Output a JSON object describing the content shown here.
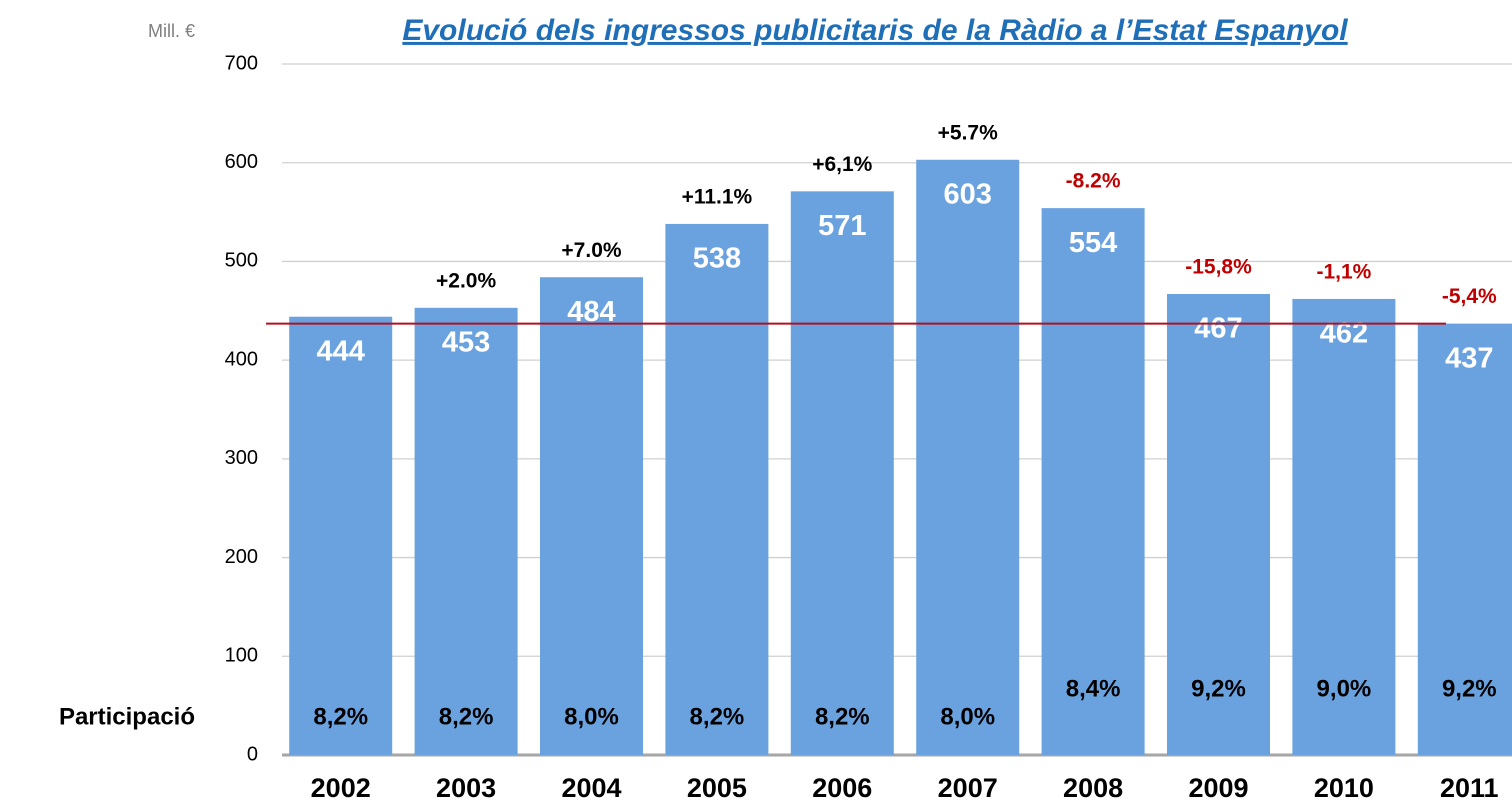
{
  "chart_data": {
    "type": "bar",
    "title": "Evolució dels ingressos publicitaris de la Ràdio a l’Estat Espanyol",
    "y_unit_label": "Mill. €",
    "share_row_label": "Participació",
    "categories": [
      "2002",
      "2003",
      "2004",
      "2005",
      "2006",
      "2007",
      "2008",
      "2009",
      "2010",
      "2011"
    ],
    "values": [
      444,
      453,
      484,
      538,
      571,
      603,
      554,
      467,
      462,
      437
    ],
    "color": "#6aa2e0",
    "growth_labels": [
      null,
      "+2.0%",
      "+7.0%",
      "+11.1%",
      "+6,1%",
      "+5.7%",
      "-8.2%",
      "-15,8%",
      "-1,1%",
      "-5,4%"
    ],
    "growth_colors": [
      null,
      "#000000",
      "#000000",
      "#000000",
      "#000000",
      "#000000",
      "#c00000",
      "#c00000",
      "#c00000",
      "#c00000"
    ],
    "share_labels": [
      "8,2%",
      "8,2%",
      "8,0%",
      "8,2%",
      "8,2%",
      "8,0%",
      "8,4%",
      "9,2%",
      "9,0%",
      "9,2%"
    ],
    "reference_line": 437,
    "reference_line_color": "#b01020",
    "ylim": [
      0,
      700
    ],
    "yticks": [
      0,
      100,
      200,
      300,
      400,
      500,
      600,
      700
    ],
    "grid": true
  }
}
